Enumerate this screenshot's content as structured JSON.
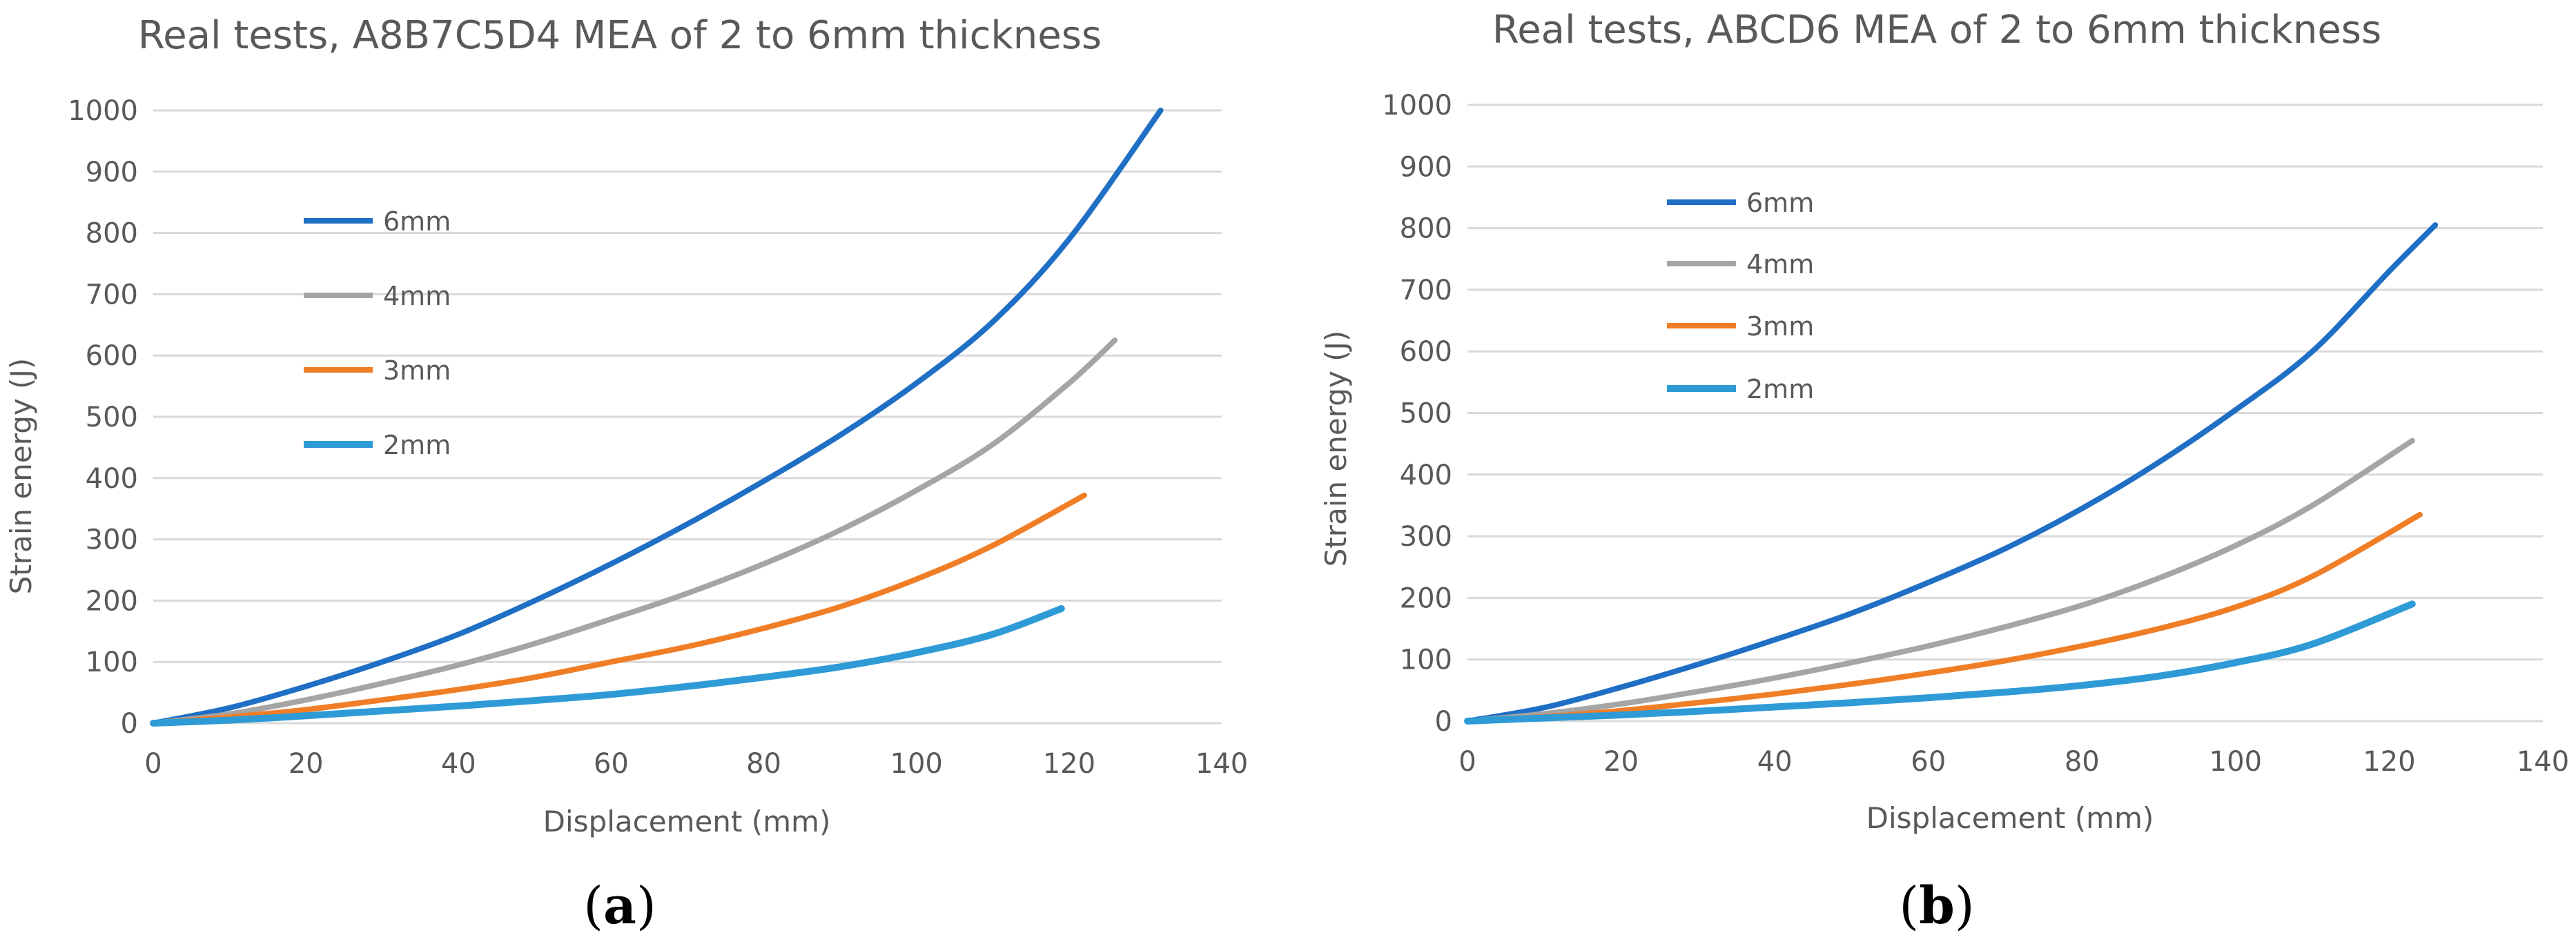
{
  "chart_data": [
    {
      "type": "line",
      "panel_label": "a",
      "title": "Real tests, A8B7C5D4 MEA of 2 to 6mm thickness",
      "xlabel": "Displacement (mm)",
      "ylabel": "Strain energy (J)",
      "xlim": [
        0,
        140
      ],
      "ylim": [
        0,
        1000
      ],
      "xticks": [
        "0",
        "20",
        "40",
        "60",
        "80",
        "100",
        "120",
        "140"
      ],
      "yticks": [
        "0",
        "100",
        "200",
        "300",
        "400",
        "500",
        "600",
        "700",
        "800",
        "900",
        "1000"
      ],
      "grid": "horizontal",
      "legend_position": "upper-left",
      "series": [
        {
          "name": "6mm",
          "color": "#1f6fc5",
          "x": [
            0,
            10,
            20,
            30,
            40,
            50,
            60,
            70,
            80,
            90,
            100,
            110,
            120,
            132
          ],
          "y": [
            0,
            25,
            60,
            100,
            145,
            200,
            260,
            325,
            395,
            470,
            555,
            655,
            790,
            1000
          ]
        },
        {
          "name": "4mm",
          "color": "#a5a5a5",
          "x": [
            0,
            10,
            20,
            30,
            40,
            50,
            60,
            70,
            80,
            90,
            100,
            110,
            120,
            126
          ],
          "y": [
            0,
            15,
            38,
            65,
            95,
            130,
            170,
            212,
            260,
            315,
            380,
            455,
            555,
            625
          ]
        },
        {
          "name": "3mm",
          "color": "#f07e26",
          "x": [
            0,
            10,
            20,
            30,
            40,
            50,
            60,
            70,
            80,
            90,
            100,
            110,
            122
          ],
          "y": [
            0,
            10,
            22,
            38,
            55,
            75,
            100,
            125,
            155,
            190,
            235,
            290,
            372
          ]
        },
        {
          "name": "2mm",
          "color": "#2e9bd6",
          "x": [
            0,
            10,
            20,
            30,
            40,
            50,
            60,
            70,
            80,
            90,
            100,
            110,
            119
          ],
          "y": [
            0,
            5,
            12,
            20,
            28,
            37,
            47,
            60,
            75,
            92,
            115,
            145,
            187
          ]
        }
      ]
    },
    {
      "type": "line",
      "panel_label": "b",
      "title": "Real tests, ABCD6 MEA of 2 to 6mm thickness",
      "xlabel": "Displacement (mm)",
      "ylabel": "Strain energy (J)",
      "xlim": [
        0,
        140
      ],
      "ylim": [
        0,
        1000
      ],
      "xticks": [
        "0",
        "20",
        "40",
        "60",
        "80",
        "100",
        "120",
        "140"
      ],
      "yticks": [
        "0",
        "100",
        "200",
        "300",
        "400",
        "500",
        "600",
        "700",
        "800",
        "900",
        "1000"
      ],
      "grid": "horizontal",
      "legend_position": "upper-left",
      "series": [
        {
          "name": "6mm",
          "color": "#1f6fc5",
          "x": [
            0,
            10,
            20,
            30,
            40,
            50,
            60,
            70,
            80,
            90,
            100,
            110,
            120,
            126
          ],
          "y": [
            0,
            22,
            55,
            92,
            132,
            175,
            225,
            280,
            345,
            420,
            505,
            600,
            730,
            805
          ]
        },
        {
          "name": "4mm",
          "color": "#a5a5a5",
          "x": [
            0,
            10,
            20,
            30,
            40,
            50,
            60,
            70,
            80,
            90,
            100,
            110,
            123
          ],
          "y": [
            0,
            12,
            28,
            48,
            70,
            95,
            122,
            153,
            188,
            232,
            285,
            350,
            455
          ]
        },
        {
          "name": "3mm",
          "color": "#f07e26",
          "x": [
            0,
            10,
            20,
            30,
            40,
            50,
            60,
            70,
            80,
            90,
            100,
            110,
            124
          ],
          "y": [
            0,
            7,
            17,
            30,
            44,
            60,
            78,
            98,
            122,
            150,
            185,
            235,
            335
          ]
        },
        {
          "name": "2mm",
          "color": "#2e9bd6",
          "x": [
            0,
            10,
            20,
            30,
            40,
            50,
            60,
            70,
            80,
            90,
            100,
            110,
            123
          ],
          "y": [
            0,
            5,
            10,
            16,
            23,
            30,
            38,
            47,
            58,
            73,
            95,
            125,
            190
          ]
        }
      ]
    }
  ]
}
